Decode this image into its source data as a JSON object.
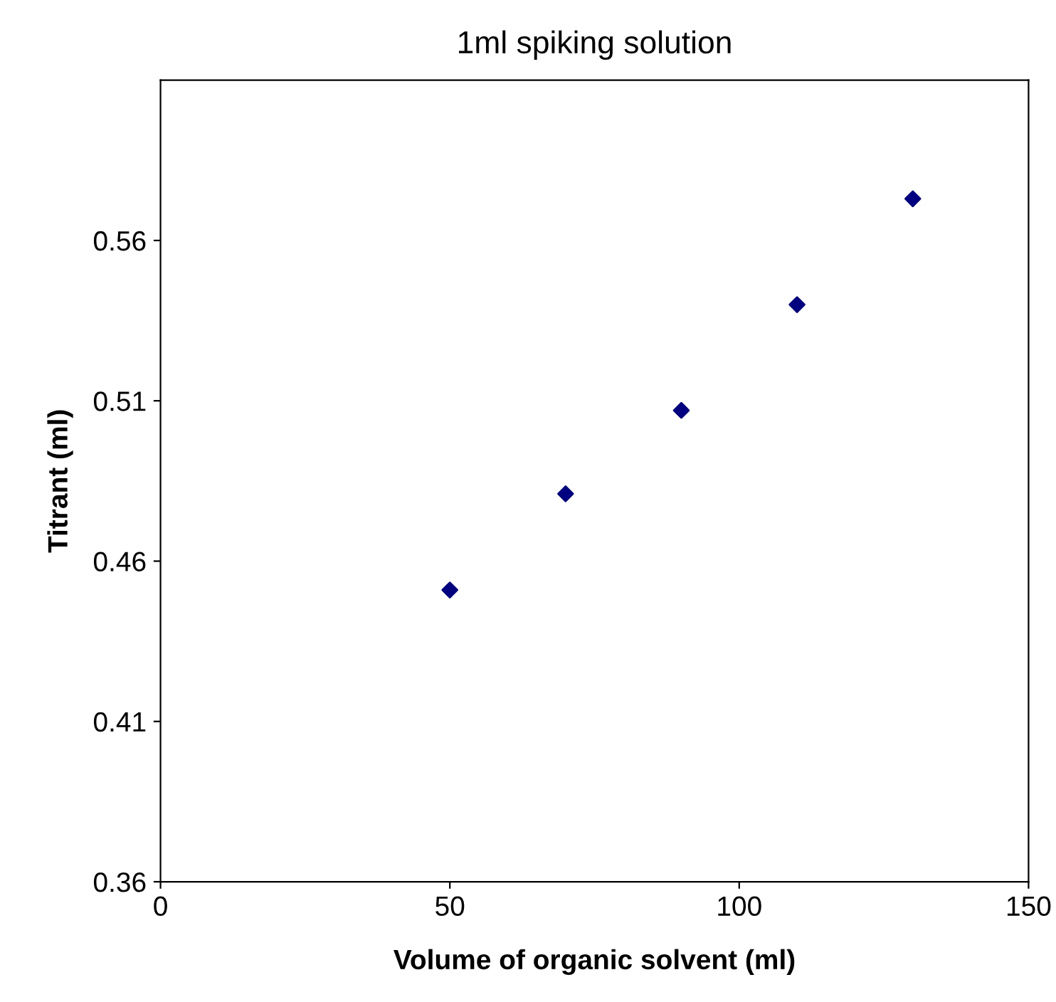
{
  "chart_data": {
    "type": "scatter",
    "title": "1ml spiking solution",
    "xlabel": "Volume of organic solvent (ml)",
    "ylabel": "Titrant (ml)",
    "x": [
      50,
      70,
      90,
      110,
      130
    ],
    "series": [
      {
        "color": "#000080",
        "values": [
          0.451,
          0.481,
          0.507,
          0.54,
          0.573
        ]
      }
    ],
    "xlim": [
      0,
      150
    ],
    "xticks": [
      0,
      50,
      100,
      150
    ],
    "ylim": [
      0.36,
      0.61
    ],
    "yticks": [
      0.36,
      0.41,
      0.46,
      0.51,
      0.56
    ],
    "marker": "diamond",
    "grid": false,
    "legend": false
  }
}
